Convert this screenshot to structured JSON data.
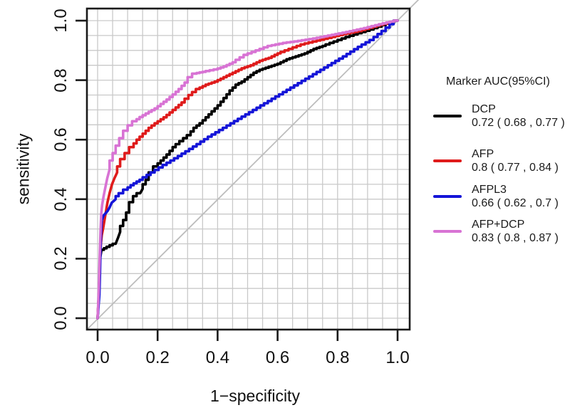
{
  "chart_data": {
    "type": "line",
    "subtype": "roc-curves",
    "title": "",
    "xlabel": "1−specificity",
    "ylabel": "sensitivity",
    "xlim": [
      0,
      1
    ],
    "ylim": [
      0,
      1
    ],
    "xticks": [
      "0.0",
      "0.2",
      "0.4",
      "0.6",
      "0.8",
      "1.0"
    ],
    "yticks": [
      "0.0",
      "0.2",
      "0.4",
      "0.6",
      "0.8",
      "1.0"
    ],
    "grid": {
      "show": true,
      "step": 0.05,
      "color": "#c9c9c9"
    },
    "reference_line": {
      "from": [
        0,
        0
      ],
      "to": [
        1,
        1
      ],
      "color": "#bdbdbd"
    },
    "legend": {
      "title": "Marker AUC(95%CI)",
      "position": "right"
    },
    "series": [
      {
        "name": "DCP",
        "auc_ci": "0.72 ( 0.68 , 0.77 )",
        "color": "#000000",
        "points": [
          [
            0,
            0
          ],
          [
            0.004,
            0.08
          ],
          [
            0.006,
            0.14
          ],
          [
            0.008,
            0.2
          ],
          [
            0.012,
            0.225
          ],
          [
            0.03,
            0.235
          ],
          [
            0.05,
            0.245
          ],
          [
            0.06,
            0.25
          ],
          [
            0.068,
            0.27
          ],
          [
            0.075,
            0.29
          ],
          [
            0.085,
            0.31
          ],
          [
            0.095,
            0.33
          ],
          [
            0.105,
            0.355
          ],
          [
            0.118,
            0.39
          ],
          [
            0.13,
            0.41
          ],
          [
            0.142,
            0.42
          ],
          [
            0.15,
            0.435
          ],
          [
            0.16,
            0.45
          ],
          [
            0.17,
            0.465
          ],
          [
            0.185,
            0.49
          ],
          [
            0.2,
            0.51
          ],
          [
            0.22,
            0.53
          ],
          [
            0.24,
            0.55
          ],
          [
            0.26,
            0.575
          ],
          [
            0.285,
            0.595
          ],
          [
            0.31,
            0.615
          ],
          [
            0.33,
            0.64
          ],
          [
            0.35,
            0.655
          ],
          [
            0.37,
            0.675
          ],
          [
            0.39,
            0.695
          ],
          [
            0.41,
            0.715
          ],
          [
            0.43,
            0.74
          ],
          [
            0.45,
            0.765
          ],
          [
            0.47,
            0.785
          ],
          [
            0.49,
            0.795
          ],
          [
            0.51,
            0.81
          ],
          [
            0.53,
            0.825
          ],
          [
            0.55,
            0.835
          ],
          [
            0.58,
            0.845
          ],
          [
            0.61,
            0.855
          ],
          [
            0.64,
            0.87
          ],
          [
            0.67,
            0.88
          ],
          [
            0.7,
            0.89
          ],
          [
            0.73,
            0.905
          ],
          [
            0.76,
            0.915
          ],
          [
            0.8,
            0.93
          ],
          [
            0.84,
            0.945
          ],
          [
            0.88,
            0.958
          ],
          [
            0.92,
            0.97
          ],
          [
            0.96,
            0.985
          ],
          [
            1,
            1
          ]
        ]
      },
      {
        "name": "AFP",
        "auc_ci": "0.8 ( 0.77 , 0.84 )",
        "color": "#df1b1b",
        "points": [
          [
            0,
            0
          ],
          [
            0.004,
            0.08
          ],
          [
            0.006,
            0.14
          ],
          [
            0.008,
            0.2
          ],
          [
            0.011,
            0.25
          ],
          [
            0.014,
            0.28
          ],
          [
            0.018,
            0.3
          ],
          [
            0.023,
            0.33
          ],
          [
            0.028,
            0.36
          ],
          [
            0.033,
            0.39
          ],
          [
            0.04,
            0.42
          ],
          [
            0.048,
            0.45
          ],
          [
            0.056,
            0.47
          ],
          [
            0.065,
            0.49
          ],
          [
            0.075,
            0.51
          ],
          [
            0.09,
            0.535
          ],
          [
            0.105,
            0.555
          ],
          [
            0.12,
            0.575
          ],
          [
            0.14,
            0.6
          ],
          [
            0.16,
            0.62
          ],
          [
            0.18,
            0.64
          ],
          [
            0.2,
            0.655
          ],
          [
            0.23,
            0.675
          ],
          [
            0.26,
            0.7
          ],
          [
            0.29,
            0.725
          ],
          [
            0.315,
            0.75
          ],
          [
            0.34,
            0.77
          ],
          [
            0.37,
            0.785
          ],
          [
            0.4,
            0.795
          ],
          [
            0.43,
            0.81
          ],
          [
            0.46,
            0.825
          ],
          [
            0.49,
            0.84
          ],
          [
            0.52,
            0.85
          ],
          [
            0.55,
            0.865
          ],
          [
            0.58,
            0.875
          ],
          [
            0.61,
            0.89
          ],
          [
            0.65,
            0.905
          ],
          [
            0.69,
            0.92
          ],
          [
            0.73,
            0.93
          ],
          [
            0.78,
            0.942
          ],
          [
            0.83,
            0.955
          ],
          [
            0.88,
            0.965
          ],
          [
            0.93,
            0.98
          ],
          [
            1,
            1
          ]
        ]
      },
      {
        "name": "AFPL3",
        "auc_ci": "0.66 ( 0.62 , 0.7 )",
        "color": "#1414d8",
        "points": [
          [
            0,
            0
          ],
          [
            0.006,
            0.08
          ],
          [
            0.008,
            0.16
          ],
          [
            0.01,
            0.24
          ],
          [
            0.012,
            0.3
          ],
          [
            0.014,
            0.33
          ],
          [
            0.02,
            0.345
          ],
          [
            0.026,
            0.352
          ],
          [
            0.033,
            0.36
          ],
          [
            0.04,
            0.372
          ],
          [
            0.047,
            0.388
          ],
          [
            0.055,
            0.395
          ],
          [
            0.06,
            0.4
          ],
          [
            0.07,
            0.41
          ],
          [
            0.085,
            0.42
          ],
          [
            0.1,
            0.432
          ],
          [
            0.12,
            0.447
          ],
          [
            0.15,
            0.465
          ],
          [
            0.19,
            0.49
          ],
          [
            0.23,
            0.515
          ],
          [
            0.28,
            0.545
          ],
          [
            0.33,
            0.577
          ],
          [
            0.38,
            0.61
          ],
          [
            0.43,
            0.64
          ],
          [
            0.48,
            0.67
          ],
          [
            0.53,
            0.7
          ],
          [
            0.58,
            0.73
          ],
          [
            0.63,
            0.76
          ],
          [
            0.68,
            0.79
          ],
          [
            0.73,
            0.82
          ],
          [
            0.78,
            0.85
          ],
          [
            0.83,
            0.88
          ],
          [
            0.88,
            0.912
          ],
          [
            0.92,
            0.935
          ],
          [
            0.96,
            0.965
          ],
          [
            1,
            1
          ]
        ]
      },
      {
        "name": "AFP+DCP",
        "auc_ci": "0.83 ( 0.8 , 0.87 )",
        "color": "#d873d4",
        "points": [
          [
            0,
            0
          ],
          [
            0.004,
            0.1
          ],
          [
            0.006,
            0.17
          ],
          [
            0.008,
            0.24
          ],
          [
            0.01,
            0.3
          ],
          [
            0.012,
            0.35
          ],
          [
            0.015,
            0.38
          ],
          [
            0.02,
            0.41
          ],
          [
            0.026,
            0.44
          ],
          [
            0.032,
            0.47
          ],
          [
            0.04,
            0.5
          ],
          [
            0.05,
            0.53
          ],
          [
            0.06,
            0.555
          ],
          [
            0.072,
            0.58
          ],
          [
            0.085,
            0.605
          ],
          [
            0.1,
            0.63
          ],
          [
            0.115,
            0.648
          ],
          [
            0.13,
            0.662
          ],
          [
            0.15,
            0.676
          ],
          [
            0.17,
            0.688
          ],
          [
            0.2,
            0.705
          ],
          [
            0.22,
            0.72
          ],
          [
            0.24,
            0.735
          ],
          [
            0.26,
            0.752
          ],
          [
            0.28,
            0.77
          ],
          [
            0.3,
            0.792
          ],
          [
            0.315,
            0.81
          ],
          [
            0.33,
            0.822
          ],
          [
            0.36,
            0.828
          ],
          [
            0.4,
            0.836
          ],
          [
            0.43,
            0.846
          ],
          [
            0.46,
            0.86
          ],
          [
            0.5,
            0.885
          ],
          [
            0.54,
            0.9
          ],
          [
            0.58,
            0.915
          ],
          [
            0.63,
            0.925
          ],
          [
            0.68,
            0.932
          ],
          [
            0.73,
            0.94
          ],
          [
            0.78,
            0.95
          ],
          [
            0.84,
            0.962
          ],
          [
            0.9,
            0.975
          ],
          [
            0.95,
            0.988
          ],
          [
            1,
            1
          ]
        ]
      }
    ]
  }
}
